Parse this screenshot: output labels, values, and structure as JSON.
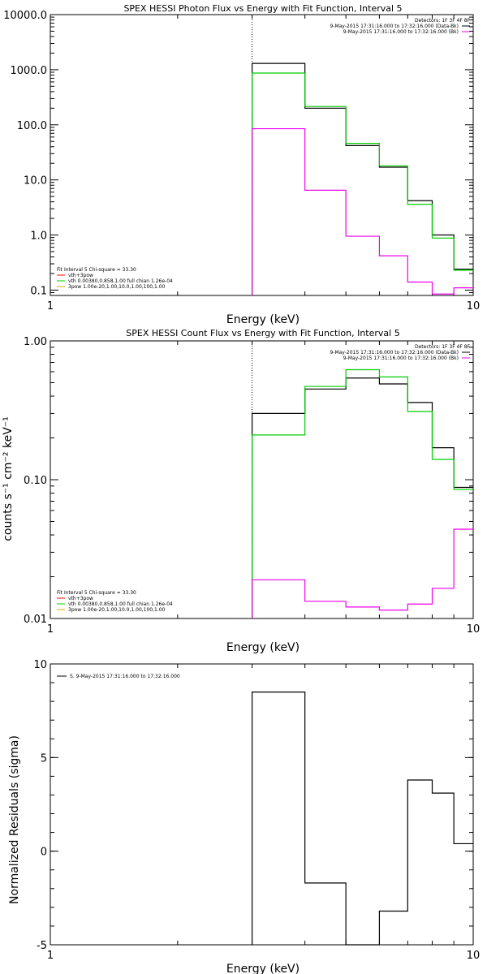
{
  "chart_data": [
    {
      "type": "line",
      "title": "SPEX HESSI Photon Flux vs Energy with Fit Function, Interval 5",
      "xlabel": "Energy (keV)",
      "ylabel": "",
      "xscale": "log",
      "yscale": "log",
      "xlim": [
        1,
        10
      ],
      "ylim": [
        0.08,
        10000
      ],
      "x_tick_labels": [
        "1",
        "10"
      ],
      "y_tick_labels": [
        "0.1",
        "1.0",
        "10.0",
        "100.0",
        "1000.0",
        "10000.0"
      ],
      "y_tick_values": [
        0.1,
        1,
        10,
        100,
        1000,
        10000
      ],
      "vline_x": 3.0,
      "bin_edges": [
        3.0,
        4.0,
        5.0,
        6.0,
        7.0,
        8.0,
        9.0,
        10.0
      ],
      "series": [
        {
          "color": "#000000",
          "values": [
            1300,
            200,
            42,
            17,
            4.2,
            1.0,
            0.24
          ]
        },
        {
          "color": "#00cc00",
          "values": [
            870,
            215,
            46,
            18,
            3.6,
            0.88,
            0.23
          ]
        },
        {
          "color": "#ee00ee",
          "values": [
            85,
            6.5,
            0.95,
            0.42,
            0.14,
            0.085,
            0.11
          ]
        }
      ],
      "legend_top": {
        "header": "Detectors: 1F 3F 4F 8F",
        "entries": [
          {
            "text": "9-May-2015 17:31:16.000 to 17:32:16.000 (Data-Bk)",
            "color": "#000000"
          },
          {
            "text": "9-May-2015 17:31:16.000 to 17:32:16.000 (Bk)",
            "color": "#ee00ee"
          }
        ]
      },
      "legend_bottom": {
        "header": "Fit Interval 5   Chi-square = 33.30",
        "entries": [
          {
            "text": "vth+3pow",
            "color": "#ff0000"
          },
          {
            "text": "vth 0.00380,0.858,1.00  full chian 1.26e-04",
            "color": "#00cc00"
          },
          {
            "text": "3pow 1.00e-20,1.00,10.0,1.00,100,1.00",
            "color": "#ddaa00"
          }
        ]
      }
    },
    {
      "type": "line",
      "title": "SPEX HESSI Count Flux vs Energy with Fit Function, Interval 5",
      "xlabel": "Energy (keV)",
      "ylabel": "counts s⁻¹ cm⁻² keV⁻¹",
      "xscale": "log",
      "yscale": "log",
      "xlim": [
        1,
        10
      ],
      "ylim": [
        0.01,
        1.0
      ],
      "x_tick_labels": [
        "1",
        "10"
      ],
      "y_tick_labels": [
        "0.01",
        "0.10",
        "1.00"
      ],
      "y_tick_values": [
        0.01,
        0.1,
        1.0
      ],
      "vline_x": 3.0,
      "bin_edges": [
        3.0,
        4.0,
        5.0,
        6.0,
        7.0,
        8.0,
        9.0,
        10.0
      ],
      "series": [
        {
          "color": "#000000",
          "values": [
            0.3,
            0.45,
            0.54,
            0.49,
            0.36,
            0.17,
            0.088
          ]
        },
        {
          "color": "#00cc00",
          "values": [
            0.21,
            0.47,
            0.62,
            0.55,
            0.31,
            0.14,
            0.085
          ]
        },
        {
          "color": "#ee00ee",
          "values": [
            0.019,
            0.0133,
            0.0121,
            0.0115,
            0.0127,
            0.0165,
            0.044
          ]
        }
      ],
      "legend_top": {
        "header": "Detectors: 1F 3F 4F 8F",
        "entries": [
          {
            "text": "9-May-2015 17:31:16.000 to 17:32:16.000 (Data-Bk)",
            "color": "#000000"
          },
          {
            "text": "9-May-2015 17:31:16.000 to 17:32:16.000 (Bk)",
            "color": "#ee00ee"
          }
        ]
      },
      "legend_bottom": {
        "header": "Fit Interval 5   Chi-square = 33.30",
        "entries": [
          {
            "text": "vth+3pow",
            "color": "#ff0000"
          },
          {
            "text": "vth 0.00380,0.858,1.00  full chian 1.26e-04",
            "color": "#00cc00"
          },
          {
            "text": "3pow 1.00e-20,1.00,10.0,1.00,100,1.00",
            "color": "#ddaa00"
          }
        ]
      }
    },
    {
      "type": "line",
      "title": "",
      "xlabel": "Energy (keV)",
      "ylabel": "Normalized Residuals (sigma)",
      "xscale": "log",
      "yscale": "linear",
      "xlim": [
        1,
        10
      ],
      "ylim": [
        -5,
        10
      ],
      "x_tick_labels": [
        "1",
        "10"
      ],
      "y_tick_labels": [
        "-5",
        "0",
        "5",
        "10"
      ],
      "y_tick_values": [
        -5,
        0,
        5,
        10
      ],
      "bin_edges": [
        3.0,
        4.0,
        5.0,
        6.0,
        7.0,
        8.0,
        9.0,
        10.0
      ],
      "series": [
        {
          "color": "#000000",
          "values": [
            8.5,
            -1.7,
            -5.0,
            -3.2,
            3.8,
            3.1,
            0.4
          ]
        }
      ],
      "legend_top_left": {
        "text": "S. 9-May-2015 17:31:16.000 to 17:32:16.000",
        "color": "#000000"
      }
    }
  ]
}
